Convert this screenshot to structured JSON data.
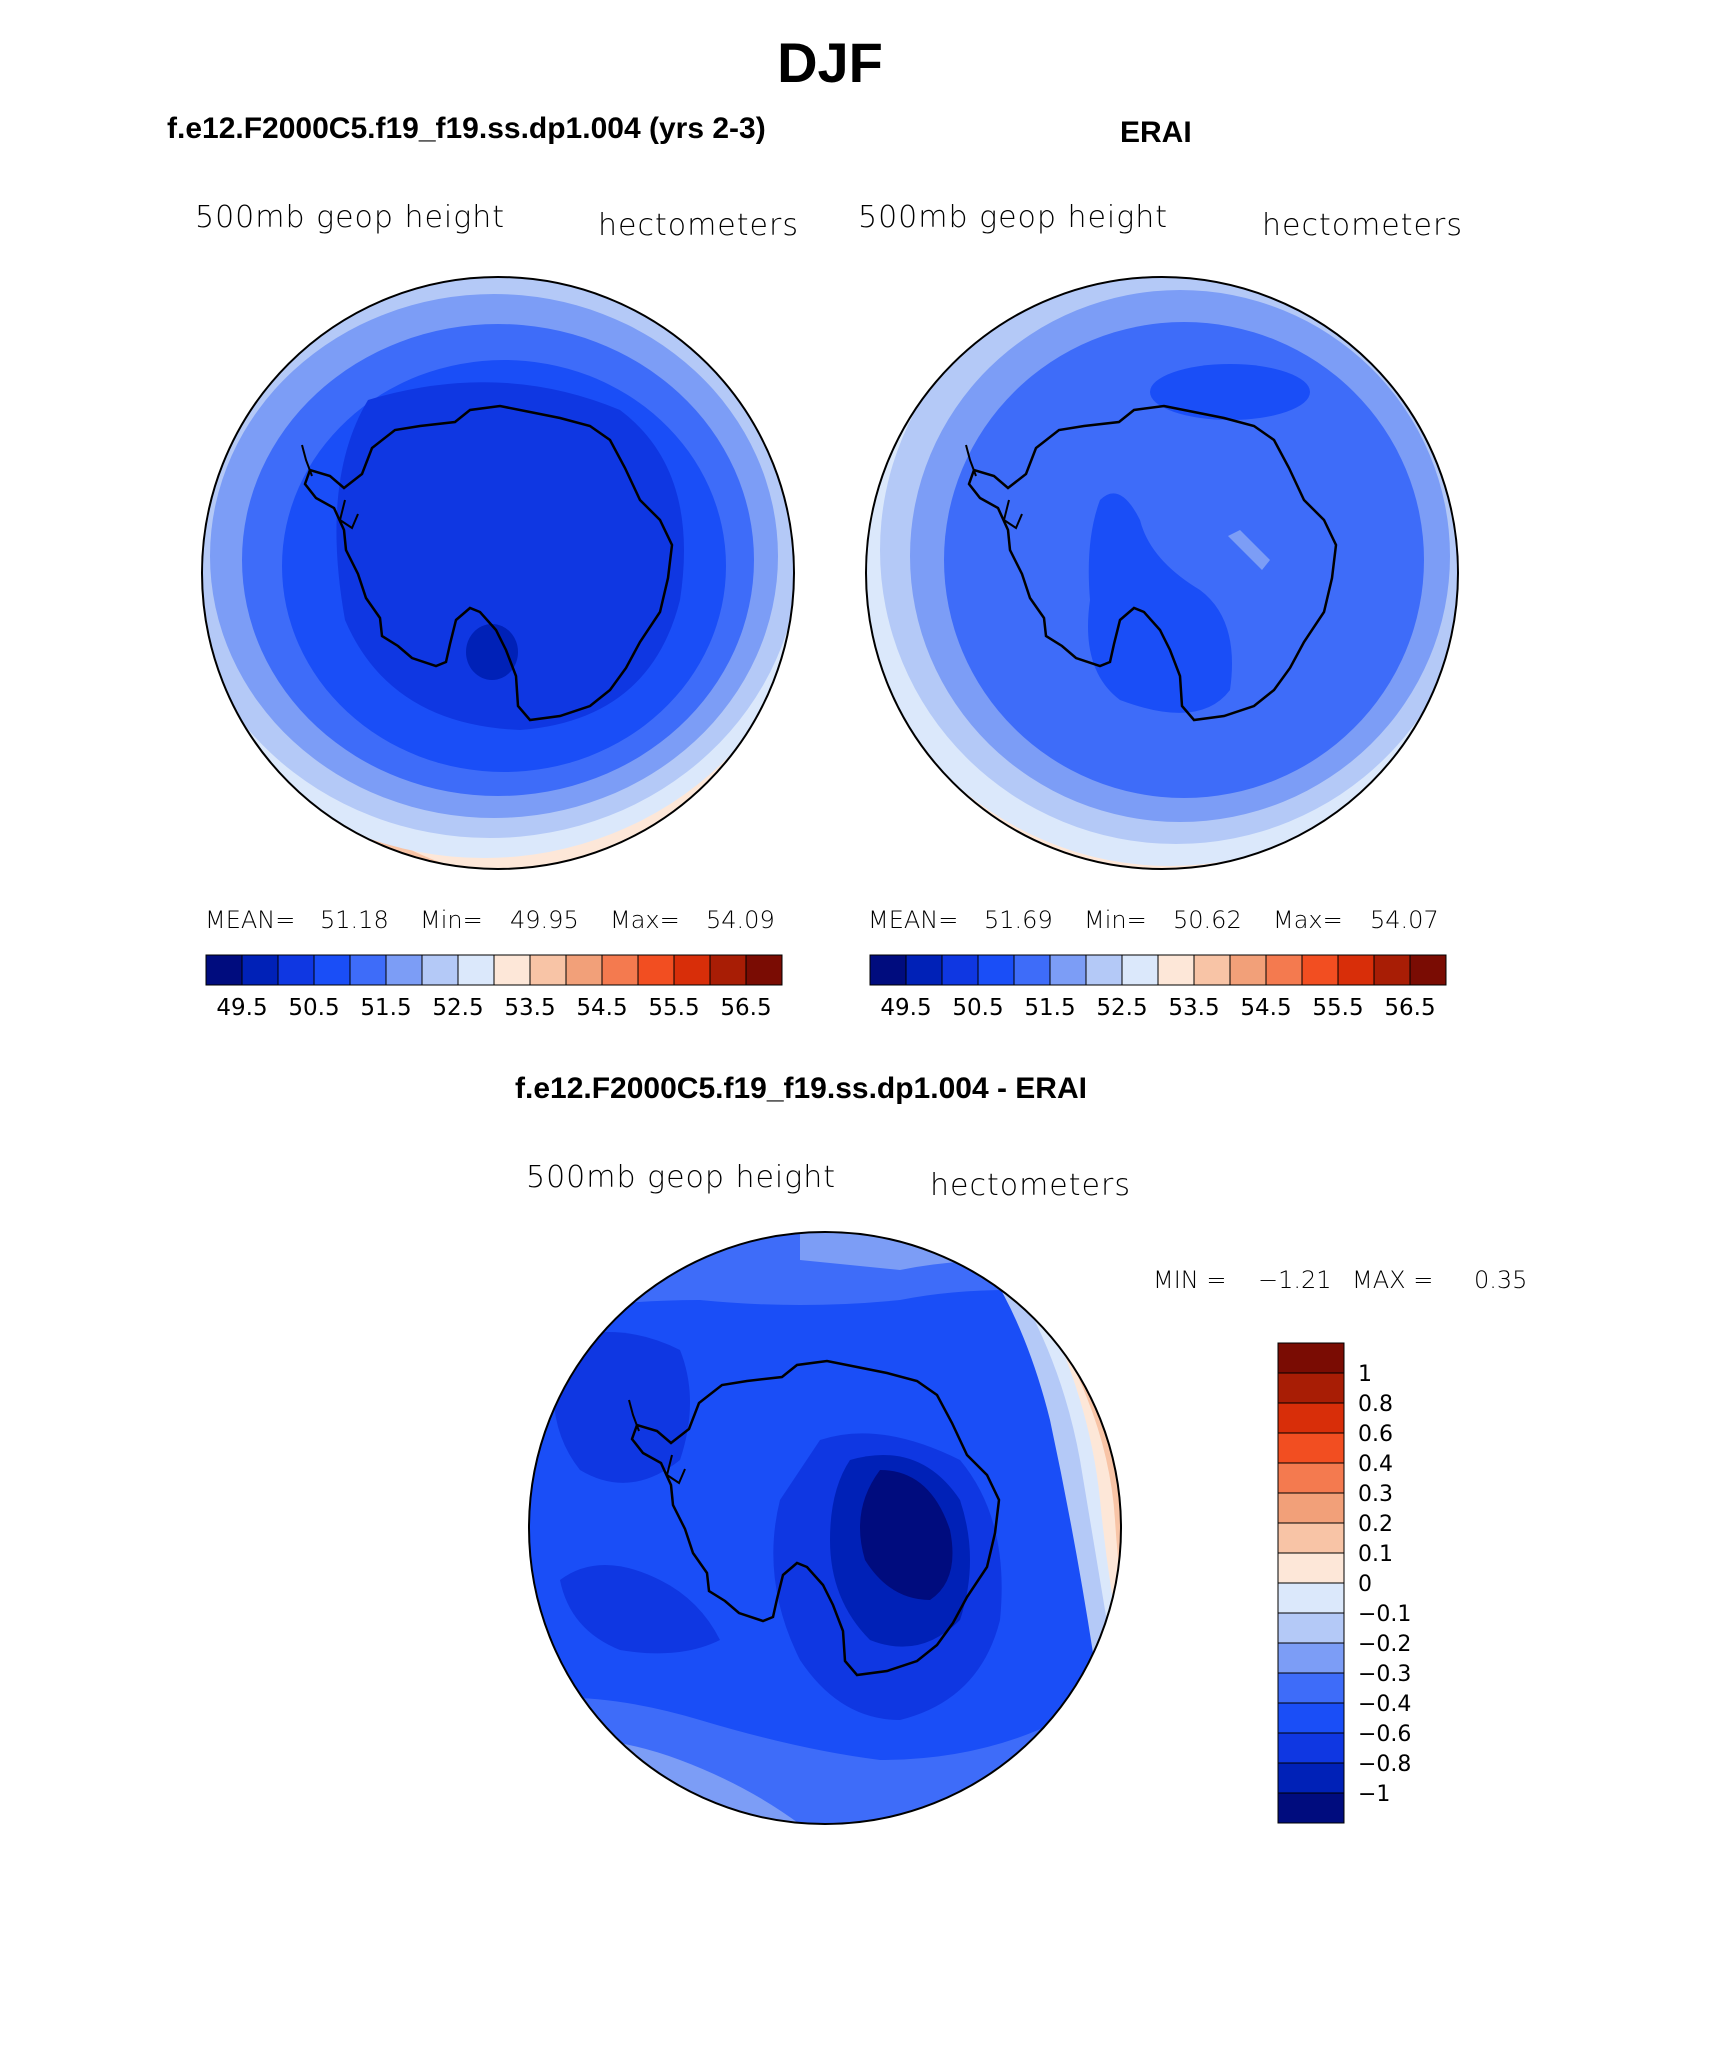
{
  "title": "DJF",
  "panels": [
    {
      "title": "f.e12.F2000C5.f19_f19.ss.dp1.004 (yrs 2-3)",
      "left_label": "500mb geop height",
      "right_label": "hectometers",
      "stats": {
        "mean_label": "MEAN=",
        "mean": "51.18",
        "min_label": "Min=",
        "min": "49.95",
        "max_label": "Max=",
        "max": "54.09"
      }
    },
    {
      "title": "ERAI",
      "left_label": "500mb geop height",
      "right_label": "hectometers",
      "stats": {
        "mean_label": "MEAN=",
        "mean": "51.69",
        "min_label": "Min=",
        "min": "50.62",
        "max_label": "Max=",
        "max": "54.07"
      }
    },
    {
      "title": "f.e12.F2000C5.f19_f19.ss.dp1.004 - ERAI",
      "left_label": "500mb geop height",
      "right_label": "hectometers",
      "stats": {
        "min_label": "MIN =",
        "min": "−1.21",
        "max_label": "MAX =",
        "max": "0.35"
      }
    }
  ],
  "chart_data": [
    {
      "type": "heatmap",
      "projection": "south-polar stereographic",
      "title": "f.e12.F2000C5.f19_f19.ss.dp1.004 (yrs 2-3)",
      "variable": "500mb geop height",
      "units": "hectometers",
      "mean": 51.18,
      "min": 49.95,
      "max": 54.09,
      "colorbar": {
        "orientation": "horizontal",
        "tick_labels": [
          "49.5",
          "50.5",
          "51.5",
          "52.5",
          "53.5",
          "54.5",
          "55.5",
          "56.5"
        ],
        "levels": [
          49.5,
          50,
          50.5,
          51,
          51.5,
          52,
          52.5,
          53,
          53.5,
          54,
          54.5,
          55,
          55.5,
          56,
          56.5
        ],
        "colors": [
          "#000c7e",
          "#0021b7",
          "#0f37e2",
          "#1a4ef7",
          "#3e6cf9",
          "#7c9df6",
          "#b4c9f7",
          "#dbe8fb",
          "#fde7d8",
          "#f8c4a6",
          "#f2a079",
          "#f47a4f",
          "#f24e21",
          "#d82e09",
          "#a81d05",
          "#7a0c03"
        ]
      }
    },
    {
      "type": "heatmap",
      "projection": "south-polar stereographic",
      "title": "ERAI",
      "variable": "500mb geop height",
      "units": "hectometers",
      "mean": 51.69,
      "min": 50.62,
      "max": 54.07,
      "colorbar": {
        "orientation": "horizontal",
        "tick_labels": [
          "49.5",
          "50.5",
          "51.5",
          "52.5",
          "53.5",
          "54.5",
          "55.5",
          "56.5"
        ],
        "levels": [
          49.5,
          50,
          50.5,
          51,
          51.5,
          52,
          52.5,
          53,
          53.5,
          54,
          54.5,
          55,
          55.5,
          56,
          56.5
        ],
        "colors": [
          "#000c7e",
          "#0021b7",
          "#0f37e2",
          "#1a4ef7",
          "#3e6cf9",
          "#7c9df6",
          "#b4c9f7",
          "#dbe8fb",
          "#fde7d8",
          "#f8c4a6",
          "#f2a079",
          "#f47a4f",
          "#f24e21",
          "#d82e09",
          "#a81d05",
          "#7a0c03"
        ]
      }
    },
    {
      "type": "heatmap",
      "projection": "south-polar stereographic",
      "title": "f.e12.F2000C5.f19_f19.ss.dp1.004 - ERAI",
      "variable": "500mb geop height",
      "units": "hectometers",
      "min": -1.21,
      "max": 0.35,
      "colorbar": {
        "orientation": "vertical",
        "tick_labels": [
          "1",
          "0.8",
          "0.6",
          "0.4",
          "0.3",
          "0.2",
          "0.1",
          "0",
          "−0.1",
          "−0.2",
          "−0.3",
          "−0.4",
          "−0.6",
          "−0.8",
          "−1"
        ],
        "colors_top_to_bottom": [
          "#7a0c03",
          "#a81d05",
          "#d82e09",
          "#f24e21",
          "#f47a4f",
          "#f2a079",
          "#f8c4a6",
          "#fde7d8",
          "#dbe8fb",
          "#b4c9f7",
          "#7c9df6",
          "#3e6cf9",
          "#1a4ef7",
          "#0f37e2",
          "#0021b7",
          "#000c7e"
        ]
      }
    }
  ]
}
